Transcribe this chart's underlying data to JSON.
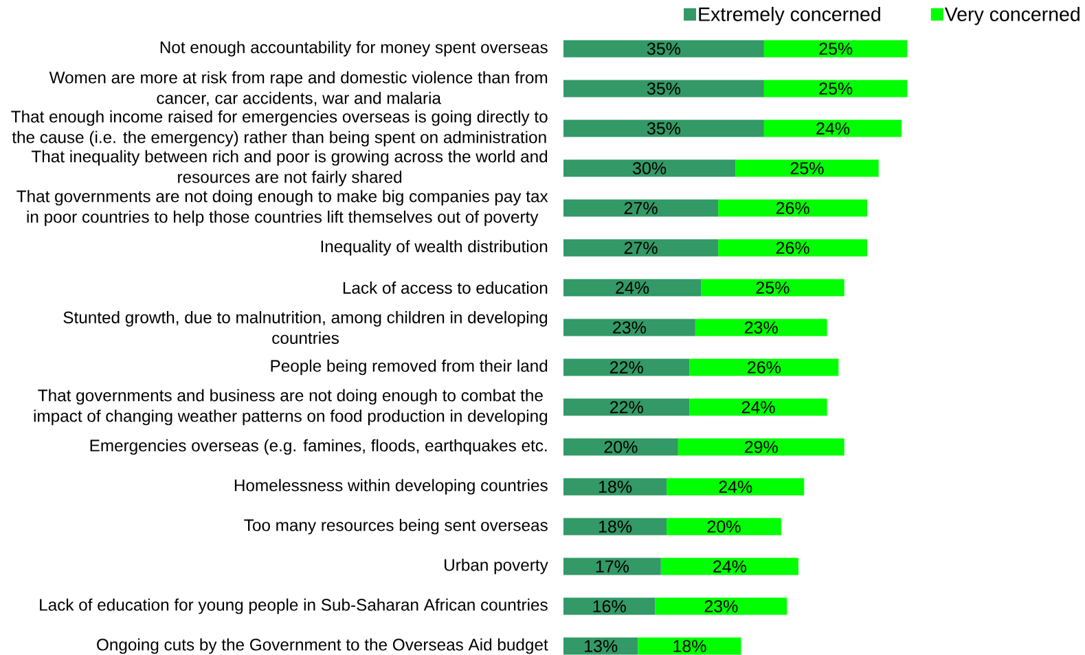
{
  "chart_data": {
    "type": "bar",
    "orientation": "horizontal",
    "stacked": true,
    "legend": "top right",
    "tick_labels": "y",
    "categories": [
      "Not enough accountability for money spent overseas",
      "Women are more at risk from rape and domestic violence than from cancer, car accidents, war and malaria",
      "That enough income raised for emergencies overseas is going directly to the cause (i.e. the emergency) rather than being spent on administration",
      "That inequality between rich and poor is growing across the world and resources are not fairly shared",
      "That governments are not doing enough to make big companies pay tax in poor countries to help those countries lift themselves out of poverty",
      "Inequality of wealth distribution",
      "Lack of access to education",
      "Stunted growth, due to malnutrition, among children in developing countries",
      "People being removed from their land",
      "That governments and business are not doing enough to combat the impact of changing weather patterns on food production in developing",
      "Emergencies overseas (e.g. famines, floods, earthquakes etc.",
      "Homelessness within developing countries",
      "Too many resources being sent overseas",
      "Urban poverty",
      "Lack of education for young people in Sub-Saharan African countries",
      "Ongoing cuts by the Government to the Overseas Aid budget"
    ],
    "series": [
      {
        "name": "Extremely concerned",
        "color": "#339966",
        "values": [
          35,
          35,
          35,
          30,
          27,
          27,
          24,
          23,
          22,
          22,
          20,
          18,
          18,
          17,
          16,
          13
        ],
        "value_labels": [
          "35%",
          "35%",
          "35%",
          "30%",
          "27%",
          "27%",
          "24%",
          "23%",
          "22%",
          "22%",
          "20%",
          "18%",
          "18%",
          "17%",
          "16%",
          "13%"
        ]
      },
      {
        "name": "Very concerned",
        "color": "#00ff00",
        "values": [
          25,
          25,
          24,
          25,
          26,
          26,
          25,
          23,
          26,
          24,
          29,
          24,
          20,
          24,
          23,
          18
        ],
        "value_labels": [
          "25%",
          "25%",
          "24%",
          "25%",
          "26%",
          "26%",
          "25%",
          "23%",
          "26%",
          "24%",
          "29%",
          "24%",
          "20%",
          "24%",
          "23%",
          "18%"
        ]
      }
    ]
  }
}
